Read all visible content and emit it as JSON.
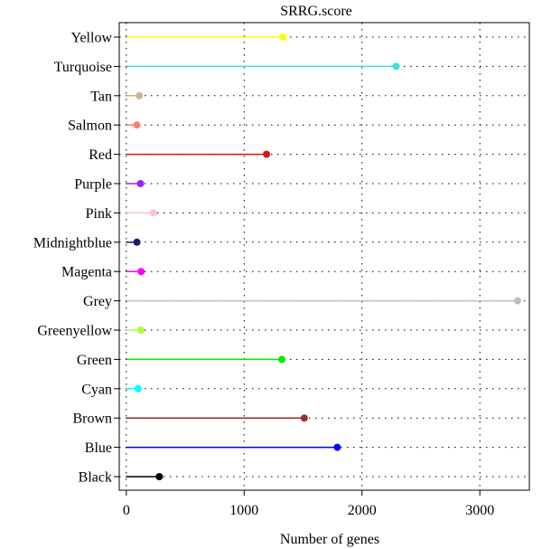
{
  "chart_data": {
    "type": "lollipop",
    "title": "SRRG.score",
    "xlabel": "Number of genes",
    "ylabel": "",
    "xlim": [
      -60,
      3420
    ],
    "xticks": [
      0,
      1000,
      2000,
      3000
    ],
    "grid": true,
    "legend": "none",
    "categories": [
      "Yellow",
      "Turquoise",
      "Tan",
      "Salmon",
      "Red",
      "Purple",
      "Pink",
      "Midnightblue",
      "Magenta",
      "Grey",
      "Greenyellow",
      "Green",
      "Cyan",
      "Brown",
      "Blue",
      "Black"
    ],
    "values": [
      1330,
      2290,
      110,
      90,
      1190,
      120,
      230,
      90,
      125,
      3320,
      125,
      1320,
      100,
      1510,
      1790,
      280
    ],
    "colors": [
      "#ffff00",
      "#40e0d0",
      "#d2b48c",
      "#fa8072",
      "#dd1111",
      "#a020f0",
      "#ffc0cb",
      "#191970",
      "#ff00ff",
      "#bebebe",
      "#adff2f",
      "#00ee00",
      "#00ffff",
      "#a52a2a",
      "#0000ff",
      "#000000"
    ]
  }
}
